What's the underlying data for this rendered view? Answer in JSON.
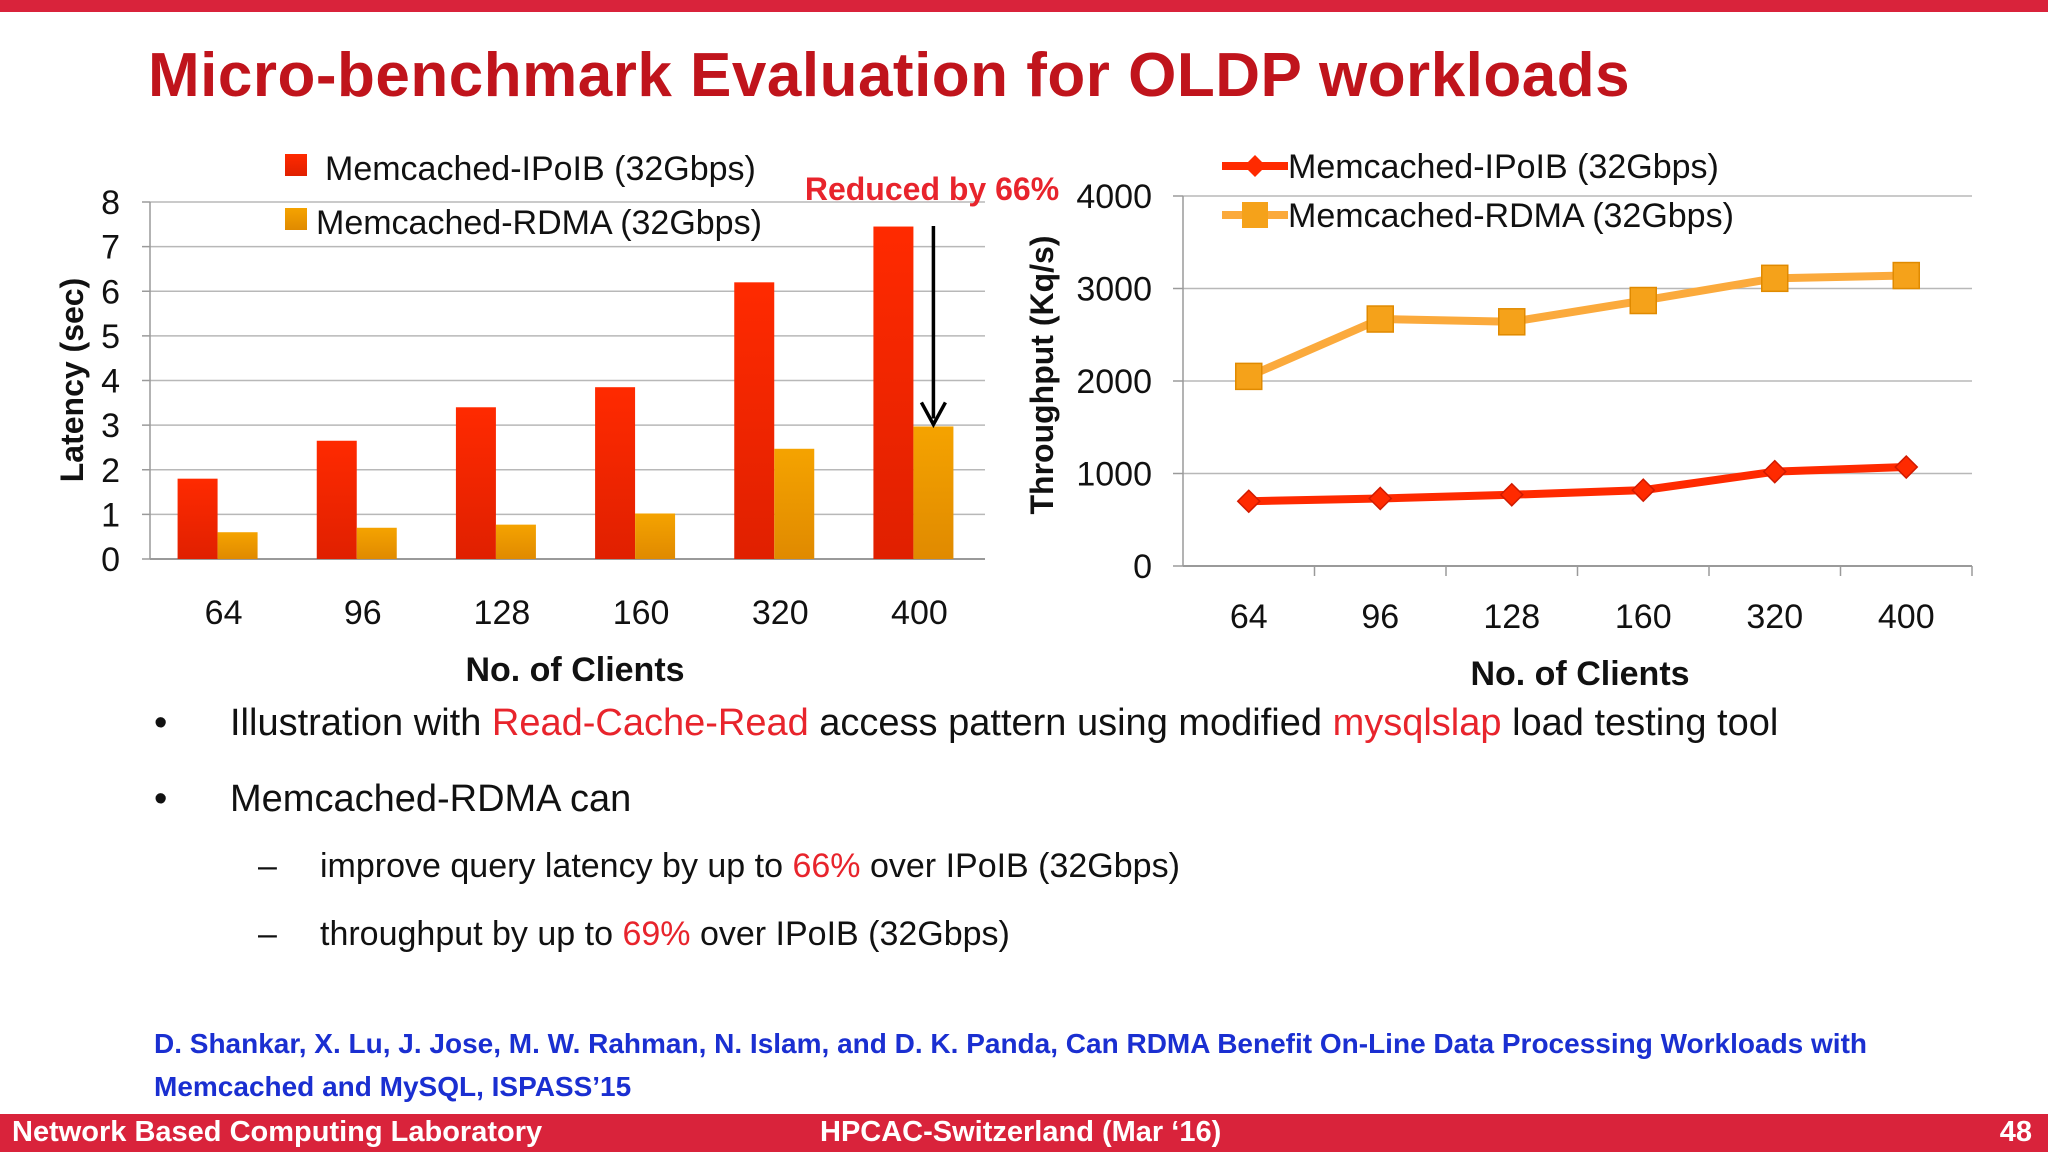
{
  "slide": {
    "title": "Micro-benchmark Evaluation for OLDP workloads"
  },
  "chart_data": [
    {
      "type": "bar",
      "ylabel": "Latency (sec)",
      "xlabel": "No. of Clients",
      "categories": [
        "64",
        "96",
        "128",
        "160",
        "320",
        "400"
      ],
      "ylim": [
        0,
        8
      ],
      "yticks": [
        "0",
        "1",
        "2",
        "3",
        "4",
        "5",
        "6",
        "7",
        "8"
      ],
      "series": [
        {
          "name": "Memcached-IPoIB (32Gbps)",
          "values": [
            1.8,
            2.65,
            3.4,
            3.85,
            6.2,
            7.45
          ],
          "color": "#ff2a00"
        },
        {
          "name": "Memcached-RDMA (32Gbps)",
          "values": [
            0.6,
            0.7,
            0.77,
            1.02,
            2.47,
            2.97
          ],
          "color": "#f5a300"
        }
      ],
      "legend_placement": "top",
      "grid": true,
      "annotation": "Reduced by 66%"
    },
    {
      "type": "line",
      "ylabel": "Throughput  (Kq/s)",
      "xlabel": "No. of Clients",
      "categories": [
        "64",
        "96",
        "128",
        "160",
        "320",
        "400"
      ],
      "ylim": [
        0,
        4000
      ],
      "yticks": [
        "0",
        "1000",
        "2000",
        "3000",
        "4000"
      ],
      "series": [
        {
          "name": "Memcached-IPoIB (32Gbps)",
          "values": [
            700,
            730,
            770,
            820,
            1020,
            1070
          ],
          "color": "#ff2a00",
          "marker": "diamond"
        },
        {
          "name": "Memcached-RDMA (32Gbps)",
          "values": [
            2050,
            2670,
            2640,
            2870,
            3110,
            3140
          ],
          "color": "#fbaa3c",
          "marker": "square"
        }
      ],
      "legend_placement": "top-left",
      "grid": true
    }
  ],
  "bullets": {
    "b1_pre": "Illustration with ",
    "b1_hl1": "Read-Cache-Read",
    "b1_mid": " access pattern using modified ",
    "b1_hl2": "mysqlslap",
    "b1_post": " load testing tool",
    "b2": "Memcached-RDMA can",
    "s1_pre": "improve query latency by up to ",
    "s1_hl": "66%",
    "s1_post": " over IPoIB (32Gbps)",
    "s2_pre": "throughput by up to ",
    "s2_hl": "69%",
    "s2_post": " over IPoIB (32Gbps)",
    "bullet_glyph": "•",
    "dash_glyph": "–"
  },
  "citation": "D. Shankar, X. Lu, J. Jose, M. W. Rahman, N. Islam, and D. K. Panda, Can RDMA Benefit On-Line Data Processing Workloads with Memcached and MySQL, ISPASS’15",
  "footer": {
    "left": "Network Based Computing Laboratory",
    "center": "HPCAC-Switzerland (Mar ‘16)",
    "right": "48"
  }
}
